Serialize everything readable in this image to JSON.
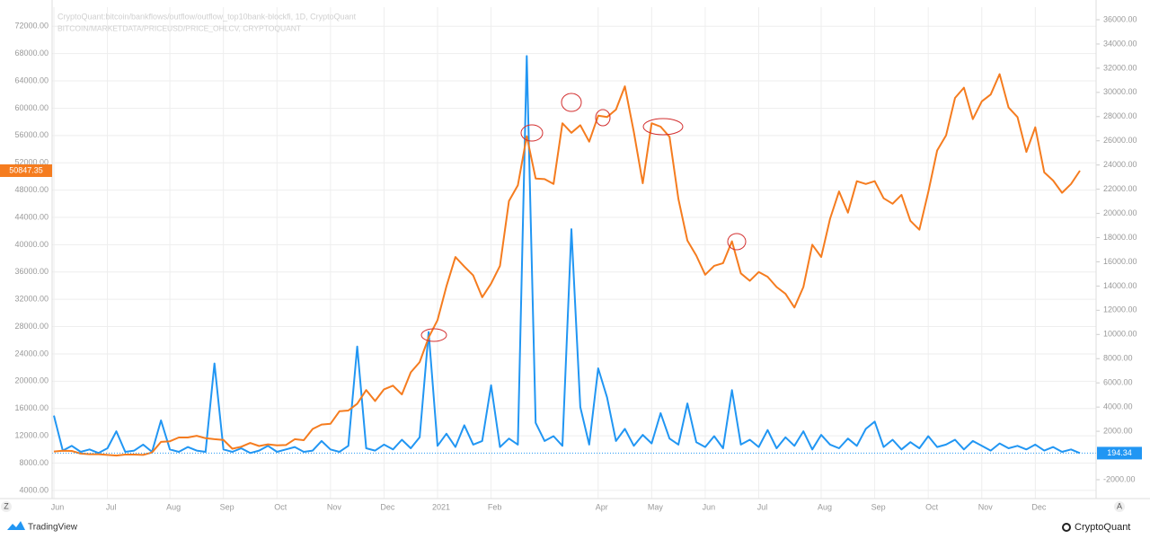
{
  "chart_data": {
    "type": "line",
    "series": [
      {
        "name": "CryptoQuant:bitcoin/bankflows/outflow/outflow_top10bank-blockfi, 1D, CryptoQuant",
        "color": "#2196f3",
        "axis": "y2",
        "values": [
          3300,
          400,
          800,
          300,
          500,
          200,
          600,
          2000,
          300,
          400,
          900,
          300,
          2900,
          500,
          300,
          700,
          400,
          300,
          7600,
          500,
          300,
          600,
          200,
          400,
          800,
          300,
          500,
          700,
          300,
          400,
          1200,
          500,
          300,
          800,
          9000,
          600,
          400,
          900,
          500,
          1300,
          600,
          1500,
          10200,
          800,
          1800,
          700,
          2500,
          900,
          1200,
          5800,
          700,
          1400,
          900,
          33000,
          2700,
          1200,
          1600,
          800,
          18700,
          4000,
          900,
          7200,
          4800,
          1200,
          2200,
          800,
          1700,
          1000,
          3500,
          1400,
          900,
          4300,
          1100,
          700,
          1600,
          600,
          5400,
          900,
          1300,
          700,
          2100,
          600,
          1500,
          800,
          2000,
          500,
          1700,
          900,
          600,
          1400,
          800,
          2200,
          2800,
          700,
          1300,
          500,
          1100,
          600,
          1600,
          700,
          900,
          1300,
          500,
          1200,
          800,
          400,
          1000,
          600,
          800,
          500,
          900,
          400,
          700,
          300,
          500,
          194.34
        ]
      },
      {
        "name": "BITCOIN/MARKETDATA/PRICEUSD/PRICE_OHLCV, CRYPTOQUANT",
        "color": "#f57c1f",
        "values": [
          9700,
          9800,
          9780,
          9400,
          9300,
          9300,
          9200,
          9100,
          9250,
          9250,
          9200,
          9550,
          11100,
          11200,
          11750,
          11750,
          12000,
          11650,
          11500,
          11400,
          10100,
          10400,
          10950,
          10500,
          10750,
          10600,
          10650,
          11500,
          11350,
          13000,
          13650,
          13750,
          15600,
          15700,
          16700,
          18700,
          17100,
          18800,
          19350,
          18050,
          21300,
          22800,
          26400,
          28950,
          33900,
          38200,
          36800,
          35500,
          32300,
          34300,
          36900,
          46400,
          48700,
          55900,
          49700,
          49600,
          48900,
          57800,
          56400,
          57500,
          55100,
          58900,
          58700,
          59800,
          63200,
          56500,
          49000,
          57800,
          57300,
          55800,
          46700,
          40600,
          38400,
          35600,
          36900,
          37300,
          40500,
          35800,
          34700,
          36000,
          35300,
          33800,
          32800,
          30800,
          33800,
          40000,
          38200,
          43800,
          47800,
          44700,
          49300,
          48900,
          49300,
          46800,
          46000,
          47300,
          43500,
          42200,
          47700,
          53800,
          56000,
          61500,
          63000,
          58400,
          61000,
          62000,
          65000,
          60100,
          58700,
          53600,
          57200,
          50600,
          49400,
          47600,
          48900,
          50847.35
        ]
      }
    ],
    "categories": [
      "Jun",
      null,
      null,
      null,
      null,
      null,
      "Jul",
      null,
      null,
      null,
      null,
      null,
      null,
      "Aug",
      null,
      null,
      null,
      null,
      null,
      "Sep",
      null,
      null,
      null,
      null,
      null,
      "Oct",
      null,
      null,
      null,
      null,
      null,
      "Nov",
      null,
      null,
      null,
      null,
      null,
      "Dec",
      null,
      null,
      null,
      null,
      null,
      "2021",
      null,
      null,
      null,
      null,
      null,
      "Feb",
      null,
      null,
      null,
      null,
      null,
      null,
      null,
      null,
      null,
      null,
      null,
      "Apr",
      null,
      null,
      null,
      null,
      null,
      "May",
      null,
      null,
      null,
      null,
      null,
      "Jun",
      null,
      null,
      null,
      null,
      null,
      "Jul",
      null,
      null,
      null,
      null,
      null,
      null,
      "Aug",
      null,
      null,
      null,
      null,
      null,
      "Sep",
      null,
      null,
      null,
      null,
      null,
      "Oct",
      null,
      null,
      null,
      null,
      null,
      "Nov",
      null,
      null,
      null,
      null,
      null,
      "Dec",
      null,
      null,
      null,
      null,
      null
    ],
    "ylim": [
      2800,
      74800
    ],
    "yticks": [
      {
        "value": 4000,
        "label": "4000.00"
      },
      {
        "value": 8000,
        "label": "8000.00"
      },
      {
        "value": 12000,
        "label": "12000.00"
      },
      {
        "value": 16000,
        "label": "16000.00"
      },
      {
        "value": 20000,
        "label": "20000.00"
      },
      {
        "value": 24000,
        "label": "24000.00"
      },
      {
        "value": 28000,
        "label": "28000.00"
      },
      {
        "value": 32000,
        "label": "32000.00"
      },
      {
        "value": 36000,
        "label": "36000.00"
      },
      {
        "value": 40000,
        "label": "40000.00"
      },
      {
        "value": 44000,
        "label": "44000.00"
      },
      {
        "value": 48000,
        "label": "48000.00"
      },
      {
        "value": 52000,
        "label": "52000.00"
      },
      {
        "value": 56000,
        "label": "56000.00"
      },
      {
        "value": 60000,
        "label": "60000.00"
      },
      {
        "value": 64000,
        "label": "64000.00"
      },
      {
        "value": 68000,
        "label": "68000.00"
      },
      {
        "value": 72000,
        "label": "72000.00"
      }
    ],
    "y2lim": [
      -3560,
      37040
    ],
    "y2ticks": [
      {
        "value": -2000,
        "label": "-2000.00"
      },
      {
        "value": 2000,
        "label": "2000.00"
      },
      {
        "value": 4000,
        "label": "4000.00"
      },
      {
        "value": 6000,
        "label": "6000.00"
      },
      {
        "value": 8000,
        "label": "8000.00"
      },
      {
        "value": 10000,
        "label": "10000.00"
      },
      {
        "value": 12000,
        "label": "12000.00"
      },
      {
        "value": 14000,
        "label": "14000.00"
      },
      {
        "value": 16000,
        "label": "16000.00"
      },
      {
        "value": 18000,
        "label": "18000.00"
      },
      {
        "value": 20000,
        "label": "20000.00"
      },
      {
        "value": 22000,
        "label": "22000.00"
      },
      {
        "value": 24000,
        "label": "24000.00"
      },
      {
        "value": 26000,
        "label": "26000.00"
      },
      {
        "value": 28000,
        "label": "28000.00"
      },
      {
        "value": 30000,
        "label": "30000.00"
      },
      {
        "value": 32000,
        "label": "32000.00"
      },
      {
        "value": 34000,
        "label": "34000.00"
      },
      {
        "value": 36000,
        "label": "36000.00"
      }
    ],
    "grid": true,
    "scale_buttons": [
      "Z",
      "A"
    ],
    "watermark_left": "TradingView",
    "watermark_right": "CryptoQuant"
  }
}
